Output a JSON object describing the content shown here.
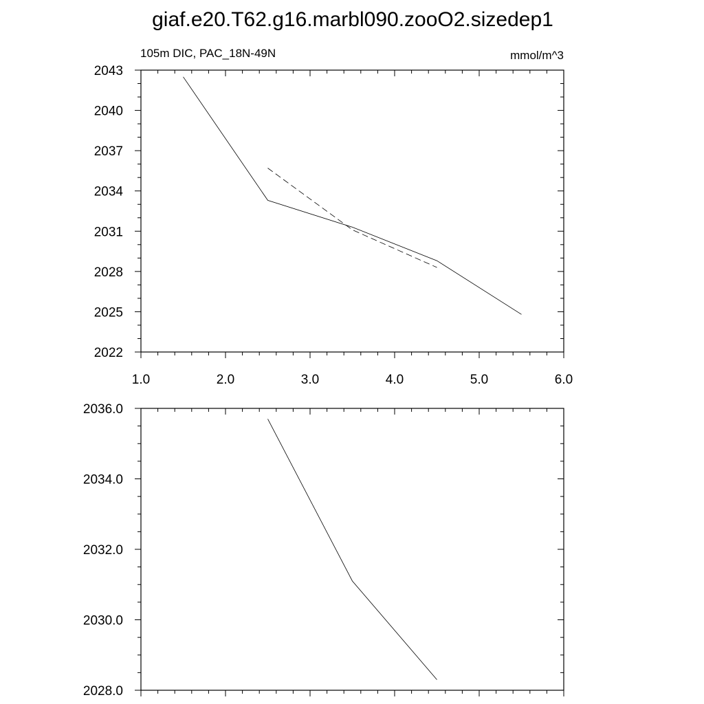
{
  "title": "giaf.e20.T62.g16.marbl090.zooO2.sizedep1",
  "chart_data": [
    {
      "type": "line",
      "left_label": "105m DIC, PAC_18N-49N",
      "right_label": "mmol/m^3",
      "xlim": [
        1.0,
        6.0
      ],
      "ylim": [
        2022,
        2043
      ],
      "x_ticks": [
        1.0,
        2.0,
        3.0,
        4.0,
        5.0,
        6.0
      ],
      "x_tick_labels": [
        "1.0",
        "2.0",
        "3.0",
        "4.0",
        "5.0",
        "6.0"
      ],
      "y_ticks": [
        2022,
        2025,
        2028,
        2031,
        2034,
        2037,
        2040,
        2043
      ],
      "y_tick_labels": [
        "2022",
        "2025",
        "2028",
        "2031",
        "2034",
        "2037",
        "2040",
        "2043"
      ],
      "grid": false,
      "series": [
        {
          "style": "solid",
          "x": [
            1.5,
            2.5,
            3.5,
            4.5,
            5.5
          ],
          "y": [
            2042.5,
            2033.3,
            2031.3,
            2028.8,
            2024.8
          ]
        },
        {
          "style": "dashed",
          "x": [
            2.5,
            3.5,
            4.5
          ],
          "y": [
            2035.7,
            2031.1,
            2028.3
          ]
        }
      ]
    },
    {
      "type": "line",
      "xlim": [
        1.0,
        6.0
      ],
      "ylim": [
        2028.0,
        2036.0
      ],
      "x_ticks": [
        1.0,
        2.0,
        3.0,
        4.0,
        5.0,
        6.0
      ],
      "x_tick_labels": [],
      "y_ticks": [
        2028.0,
        2030.0,
        2032.0,
        2034.0,
        2036.0
      ],
      "y_tick_labels": [
        "2028.0",
        "2030.0",
        "2032.0",
        "2034.0",
        "2036.0"
      ],
      "grid": false,
      "series": [
        {
          "style": "solid",
          "x": [
            2.5,
            3.5,
            4.5
          ],
          "y": [
            2035.7,
            2031.1,
            2028.3
          ]
        }
      ]
    }
  ]
}
